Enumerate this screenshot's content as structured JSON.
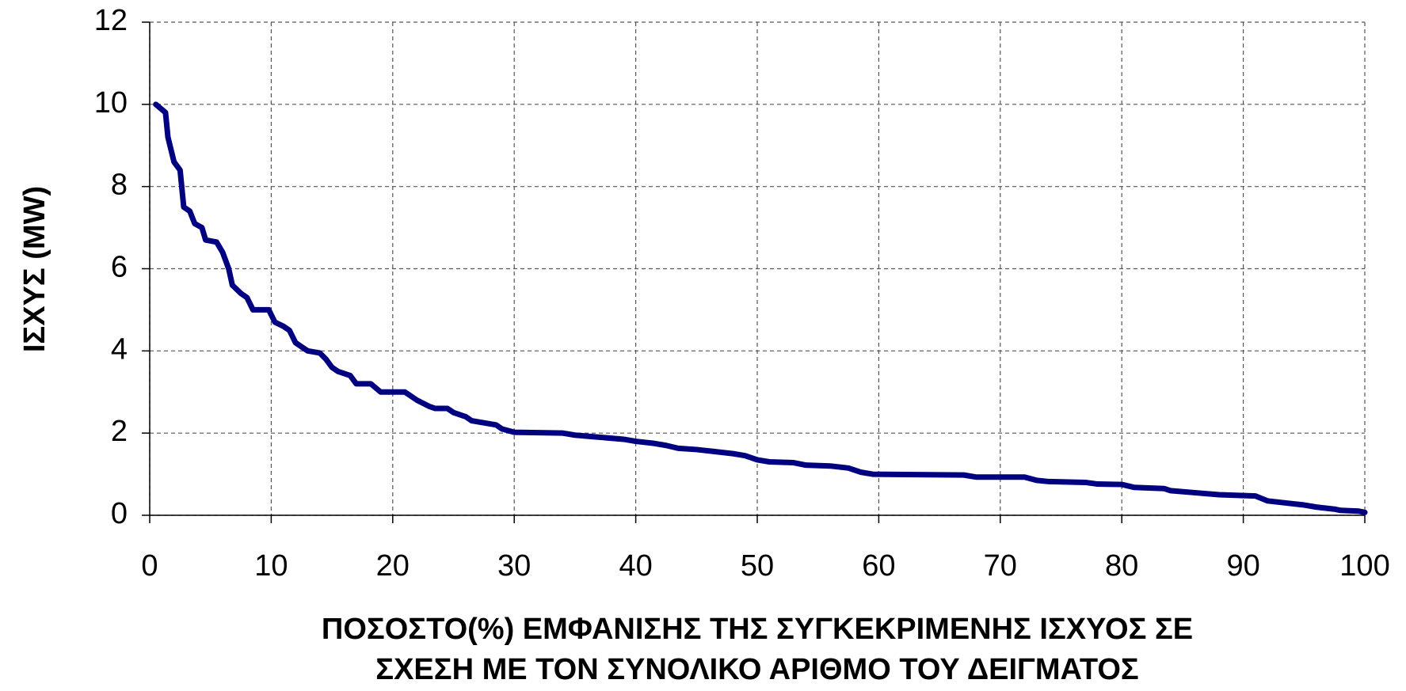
{
  "chart_data": {
    "type": "line",
    "ylabel": "ΙΣΧΥΣ (MW)",
    "xlabel": [
      "ΠΟΣΟΣΤΟ(%) ΕΜΦΑΝΙΣΗΣ ΤΗΣ ΣΥΓΚΕΚΡΙΜΕΝΗΣ ΙΣΧΥΟΣ ΣΕ",
      "ΣΧΕΣΗ ΜΕ ΤΟΝ ΣΥΝΟΛΙΚΟ ΑΡΙΘΜΟ ΤΟΥ ΔΕΙΓΜΑΤΟΣ"
    ],
    "x": [
      0.5,
      1.3,
      1.5,
      2,
      2.5,
      2.8,
      3.3,
      3.7,
      4.3,
      4.6,
      5.5,
      6,
      6.5,
      6.8,
      7.5,
      8,
      8.5,
      9.8,
      10.3,
      11,
      11.5,
      12,
      13,
      14,
      14.5,
      15,
      15.5,
      16.5,
      17,
      18.2,
      19,
      21,
      22,
      23,
      23.5,
      24.5,
      25,
      26,
      26.5,
      27.5,
      28.5,
      29,
      30,
      34,
      35,
      37,
      39,
      40,
      41.5,
      42.5,
      43.5,
      45,
      46.5,
      48,
      49,
      50,
      51,
      53,
      54,
      56,
      57.5,
      58.5,
      59.5,
      67,
      68,
      72,
      73,
      74,
      77,
      78,
      80,
      81,
      83.5,
      84,
      86,
      88,
      91,
      92,
      93.5,
      95,
      96,
      97.5,
      98,
      99.5,
      100
    ],
    "series": [
      {
        "color": "#000080",
        "values": [
          10,
          9.8,
          9.2,
          8.6,
          8.4,
          7.5,
          7.4,
          7.1,
          7,
          6.7,
          6.65,
          6.4,
          6,
          5.6,
          5.4,
          5.3,
          5,
          5,
          4.7,
          4.6,
          4.5,
          4.2,
          4,
          3.95,
          3.8,
          3.6,
          3.5,
          3.4,
          3.2,
          3.2,
          3,
          3,
          2.8,
          2.65,
          2.6,
          2.6,
          2.5,
          2.4,
          2.3,
          2.25,
          2.2,
          2.1,
          2.02,
          2,
          1.95,
          1.9,
          1.85,
          1.8,
          1.75,
          1.7,
          1.63,
          1.6,
          1.55,
          1.5,
          1.45,
          1.35,
          1.3,
          1.28,
          1.22,
          1.2,
          1.15,
          1.05,
          1,
          0.98,
          0.93,
          0.93,
          0.85,
          0.82,
          0.8,
          0.76,
          0.75,
          0.68,
          0.65,
          0.6,
          0.55,
          0.5,
          0.47,
          0.35,
          0.3,
          0.25,
          0.2,
          0.15,
          0.12,
          0.1,
          0.07
        ]
      }
    ],
    "xlim": [
      0,
      100
    ],
    "xticks": [
      0,
      10,
      20,
      30,
      40,
      50,
      60,
      70,
      80,
      90,
      100
    ],
    "ylim": [
      0,
      12
    ],
    "yticks": [
      0,
      2,
      4,
      6,
      8,
      10,
      12
    ],
    "grid": true
  }
}
